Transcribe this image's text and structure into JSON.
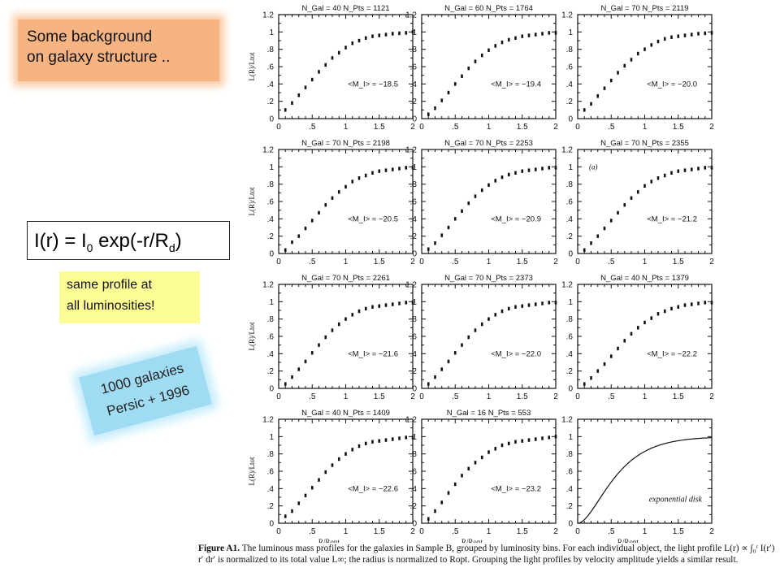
{
  "callouts": {
    "background": "Some background\non galaxy structure ..",
    "profile": "same profile at\nall luminosities!",
    "sample": "1000 galaxies\nPersic + 1996"
  },
  "formula": {
    "lhs": "I(r) = I",
    "sub0": "0",
    "mid": " exp(-r/R",
    "subd": "d",
    "rhs": ")"
  },
  "caption": {
    "label": "Figure A1.",
    "text": "The luminous mass profiles for the galaxies in Sample B, grouped by luminosity bins. For each individual object, the light profile L(r) ∝ ∫₀ʳ I(r′) r′ dr′ is normalized to its total value L∞; the radius is normalized to Ropt. Grouping the light profiles by velocity amplitude yields a similar result."
  },
  "chart_data": {
    "type": "scatter",
    "xlabel": "R/Ropt",
    "ylabel": "L(R)/Ltot",
    "xlim": [
      0,
      2
    ],
    "ylim": [
      0,
      1.2
    ],
    "x_ticks": [
      "0",
      ".5",
      "1",
      "1.5",
      "2"
    ],
    "y_ticks": [
      "0",
      ".2",
      ".4",
      ".6",
      ".8",
      "1",
      "1.2"
    ],
    "x": [
      0.1,
      0.2,
      0.3,
      0.4,
      0.5,
      0.6,
      0.7,
      0.8,
      0.9,
      1.0,
      1.1,
      1.2,
      1.3,
      1.4,
      1.5,
      1.6,
      1.7,
      1.8,
      1.9,
      2.0
    ],
    "panels": [
      {
        "title": "N_Gal = 40  N_Pts = 1121",
        "mag": "<M_I> = −18.5",
        "y": [
          0.1,
          0.18,
          0.27,
          0.36,
          0.45,
          0.54,
          0.62,
          0.7,
          0.76,
          0.82,
          0.87,
          0.9,
          0.93,
          0.95,
          0.96,
          0.97,
          0.98,
          0.985,
          0.99,
          1.0
        ]
      },
      {
        "title": "N_Gal = 60  N_Pts = 1764",
        "mag": "<M_I> = −19.4",
        "y": [
          0.05,
          0.12,
          0.21,
          0.3,
          0.4,
          0.49,
          0.58,
          0.66,
          0.73,
          0.79,
          0.84,
          0.88,
          0.91,
          0.93,
          0.95,
          0.96,
          0.97,
          0.98,
          0.99,
          0.99
        ]
      },
      {
        "title": "N_Gal = 70  N_Pts = 2119",
        "mag": "<M_I> = −20.0",
        "y": [
          0.1,
          0.17,
          0.26,
          0.35,
          0.44,
          0.53,
          0.61,
          0.68,
          0.75,
          0.8,
          0.85,
          0.89,
          0.92,
          0.94,
          0.95,
          0.96,
          0.97,
          0.98,
          0.985,
          0.99
        ]
      },
      {
        "title": "N_Gal = 70  N_Pts = 2198",
        "mag": "<M_I> = −20.5",
        "y": [
          0.04,
          0.13,
          0.2,
          0.29,
          0.38,
          0.47,
          0.56,
          0.64,
          0.71,
          0.77,
          0.83,
          0.87,
          0.9,
          0.93,
          0.95,
          0.96,
          0.97,
          0.98,
          0.99,
          0.99
        ]
      },
      {
        "title": "N_Gal = 70  N_Pts = 2253",
        "mag": "<M_I> = −20.9",
        "y": [
          0.05,
          0.12,
          0.21,
          0.3,
          0.4,
          0.49,
          0.58,
          0.66,
          0.73,
          0.79,
          0.84,
          0.88,
          0.91,
          0.93,
          0.95,
          0.96,
          0.97,
          0.98,
          0.99,
          0.99
        ]
      },
      {
        "title": "N_Gal = 70  N_Pts = 2355",
        "mag": "<M_I> = −21.2",
        "annotation": "(a)",
        "y": [
          0.04,
          0.12,
          0.2,
          0.29,
          0.38,
          0.47,
          0.56,
          0.64,
          0.71,
          0.78,
          0.83,
          0.87,
          0.9,
          0.93,
          0.95,
          0.96,
          0.97,
          0.98,
          0.99,
          0.99
        ]
      },
      {
        "title": "N_Gal = 70  N_Pts = 2261",
        "mag": "<M_I> = −21.6",
        "y": [
          0.05,
          0.13,
          0.22,
          0.31,
          0.41,
          0.5,
          0.59,
          0.67,
          0.74,
          0.8,
          0.85,
          0.89,
          0.92,
          0.94,
          0.95,
          0.96,
          0.97,
          0.98,
          0.99,
          0.99
        ]
      },
      {
        "title": "N_Gal = 70  N_Pts = 2373",
        "mag": "<M_I> = −22.0",
        "y": [
          0.05,
          0.13,
          0.22,
          0.31,
          0.41,
          0.5,
          0.59,
          0.67,
          0.74,
          0.8,
          0.85,
          0.89,
          0.92,
          0.94,
          0.95,
          0.96,
          0.97,
          0.98,
          0.99,
          0.99
        ]
      },
      {
        "title": "N_Gal = 40  N_Pts = 1379",
        "mag": "<M_I> = −22.2",
        "y": [
          0.05,
          0.12,
          0.2,
          0.28,
          0.37,
          0.46,
          0.55,
          0.63,
          0.7,
          0.76,
          0.81,
          0.86,
          0.89,
          0.92,
          0.94,
          0.96,
          0.97,
          0.98,
          0.99,
          0.99
        ]
      },
      {
        "title": "N_Gal = 40  N_Pts = 1409",
        "mag": "<M_I> = −22.6",
        "y": [
          0.08,
          0.14,
          0.23,
          0.32,
          0.41,
          0.5,
          0.59,
          0.67,
          0.74,
          0.8,
          0.85,
          0.89,
          0.92,
          0.94,
          0.95,
          0.96,
          0.97,
          0.98,
          0.99,
          0.99
        ]
      },
      {
        "title": "N_Gal = 16  N_Pts = 553",
        "mag": "<M_I> = −23.2",
        "y": [
          0.05,
          0.14,
          0.24,
          0.35,
          0.45,
          0.55,
          0.63,
          0.7,
          0.76,
          0.82,
          0.86,
          0.9,
          0.92,
          0.94,
          0.95,
          0.96,
          0.97,
          0.98,
          0.99,
          1.0
        ]
      },
      {
        "title": "",
        "mag": "",
        "curve_label": "exponential disk",
        "curve": "exponential disk"
      }
    ]
  }
}
